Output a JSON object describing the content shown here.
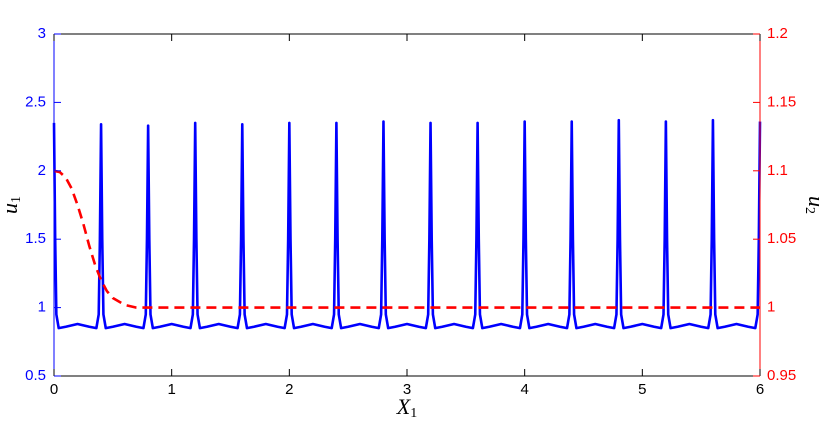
{
  "chart_data": {
    "type": "line",
    "xlabel": {
      "base": "X",
      "sub": "1"
    },
    "ylabel": {
      "base": "u",
      "sub": "1"
    },
    "y2label": {
      "base": "u",
      "sub": "2"
    },
    "xlim": [
      0,
      6
    ],
    "xticks": [
      0,
      1,
      2,
      3,
      4,
      5,
      6
    ],
    "ylim": [
      0.5,
      3
    ],
    "yticks": [
      0.5,
      1,
      1.5,
      2,
      2.5,
      3
    ],
    "y2lim": [
      0.95,
      1.2
    ],
    "y2ticks": [
      0.95,
      1,
      1.05,
      1.1,
      1.15,
      1.2
    ],
    "ycolor": "#0000ff",
    "y2color": "#ff0000",
    "series": [
      {
        "color": "#0000ff",
        "dash": false,
        "x": [
          0,
          0.01,
          0.02,
          0.04,
          0.1,
          0.2,
          0.3,
          0.36,
          0.38,
          0.39,
          0.4,
          0.41,
          0.42,
          0.44,
          0.5,
          0.6,
          0.7,
          0.76,
          0.78,
          0.79,
          0.8,
          0.81,
          0.82,
          0.84,
          0.9,
          1.0,
          1.1,
          1.16,
          1.18,
          1.19,
          1.2,
          1.21,
          1.22,
          1.24,
          1.3,
          1.4,
          1.5,
          1.56,
          1.58,
          1.59,
          1.6,
          1.61,
          1.62,
          1.64,
          1.7,
          1.8,
          1.9,
          1.96,
          1.98,
          1.99,
          2.0,
          2.01,
          2.02,
          2.04,
          2.1,
          2.2,
          2.3,
          2.36,
          2.38,
          2.39,
          2.4,
          2.41,
          2.42,
          2.44,
          2.5,
          2.6,
          2.7,
          2.76,
          2.78,
          2.79,
          2.8,
          2.81,
          2.82,
          2.84,
          2.9,
          3.0,
          3.1,
          3.16,
          3.18,
          3.19,
          3.2,
          3.21,
          3.22,
          3.24,
          3.3,
          3.4,
          3.5,
          3.56,
          3.58,
          3.59,
          3.6,
          3.61,
          3.62,
          3.64,
          3.7,
          3.8,
          3.9,
          3.96,
          3.98,
          3.99,
          4.0,
          4.01,
          4.02,
          4.04,
          4.1,
          4.2,
          4.3,
          4.36,
          4.38,
          4.39,
          4.4,
          4.41,
          4.42,
          4.44,
          4.5,
          4.6,
          4.7,
          4.76,
          4.78,
          4.79,
          4.8,
          4.81,
          4.82,
          4.84,
          4.9,
          5.0,
          5.1,
          5.16,
          5.18,
          5.19,
          5.2,
          5.21,
          5.22,
          5.24,
          5.3,
          5.4,
          5.5,
          5.56,
          5.58,
          5.59,
          5.6,
          5.61,
          5.62,
          5.64,
          5.7,
          5.8,
          5.9,
          5.96,
          5.98,
          5.99,
          6.0
        ],
        "values": [
          2.35,
          1.5,
          0.95,
          0.85,
          0.86,
          0.88,
          0.86,
          0.85,
          0.95,
          1.5,
          2.34,
          1.5,
          0.95,
          0.85,
          0.86,
          0.88,
          0.86,
          0.85,
          0.95,
          1.5,
          2.33,
          1.5,
          0.95,
          0.85,
          0.86,
          0.88,
          0.86,
          0.85,
          0.95,
          1.5,
          2.35,
          1.5,
          0.95,
          0.85,
          0.86,
          0.88,
          0.86,
          0.85,
          0.95,
          1.5,
          2.34,
          1.5,
          0.95,
          0.85,
          0.86,
          0.88,
          0.86,
          0.85,
          0.95,
          1.5,
          2.35,
          1.5,
          0.95,
          0.85,
          0.86,
          0.88,
          0.86,
          0.85,
          0.95,
          1.5,
          2.35,
          1.5,
          0.95,
          0.85,
          0.86,
          0.88,
          0.86,
          0.85,
          0.95,
          1.5,
          2.36,
          1.5,
          0.95,
          0.85,
          0.86,
          0.88,
          0.86,
          0.85,
          0.95,
          1.5,
          2.35,
          1.5,
          0.95,
          0.85,
          0.86,
          0.88,
          0.86,
          0.85,
          0.95,
          1.5,
          2.35,
          1.5,
          0.95,
          0.85,
          0.86,
          0.88,
          0.86,
          0.85,
          0.95,
          1.5,
          2.36,
          1.5,
          0.95,
          0.85,
          0.86,
          0.88,
          0.86,
          0.85,
          0.95,
          1.5,
          2.36,
          1.5,
          0.95,
          0.85,
          0.86,
          0.88,
          0.86,
          0.85,
          0.95,
          1.5,
          2.37,
          1.5,
          0.95,
          0.85,
          0.86,
          0.88,
          0.86,
          0.85,
          0.95,
          1.5,
          2.36,
          1.5,
          0.95,
          0.85,
          0.86,
          0.88,
          0.86,
          0.85,
          0.95,
          1.5,
          2.37,
          1.5,
          0.95,
          0.85,
          0.86,
          0.88,
          0.86,
          0.85,
          0.95,
          1.5,
          2.36
        ]
      },
      {
        "color": "#ff0000",
        "dash": true,
        "axis": "y2",
        "x": [
          0,
          0.05,
          0.1,
          0.15,
          0.2,
          0.25,
          0.3,
          0.35,
          0.4,
          0.45,
          0.5,
          0.6,
          0.7,
          0.8,
          6
        ],
        "values": [
          1.1,
          1.099,
          1.095,
          1.087,
          1.075,
          1.061,
          1.045,
          1.031,
          1.02,
          1.012,
          1.007,
          1.002,
          1.0,
          1.0,
          1.0
        ]
      }
    ]
  }
}
